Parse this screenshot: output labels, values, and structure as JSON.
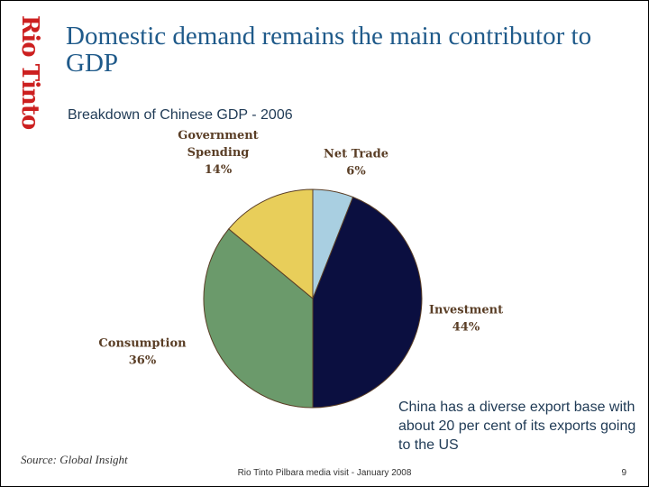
{
  "brand": {
    "logo_text": "Rio Tinto",
    "logo_color": "#cc1f1f"
  },
  "slide": {
    "title": "Domestic demand remains the main contributor to GDP",
    "subtitle": "Breakdown of Chinese GDP - 2006",
    "note": "China has a diverse export base with about 20 per cent of its exports going to the US",
    "source": "Source: Global Insight",
    "footer": "Rio Tinto Pilbara media visit - January 2008",
    "page_number": "9"
  },
  "chart_data": {
    "type": "pie",
    "title": "Breakdown of Chinese GDP - 2006",
    "start": "12 o'clock",
    "direction": "clockwise",
    "slices": [
      {
        "label": [
          "Net Trade"
        ],
        "value": 6,
        "value_label": "6%",
        "color": "#a9cfe1"
      },
      {
        "label": [
          "Investment"
        ],
        "value": 44,
        "value_label": "44%",
        "color": "#0b0f40"
      },
      {
        "label": [
          "Consumption"
        ],
        "value": 36,
        "value_label": "36%",
        "color": "#6b9a6b"
      },
      {
        "label": [
          "Government",
          "Spending"
        ],
        "value": 14,
        "value_label": "14%",
        "color": "#e8ce5a"
      }
    ]
  }
}
